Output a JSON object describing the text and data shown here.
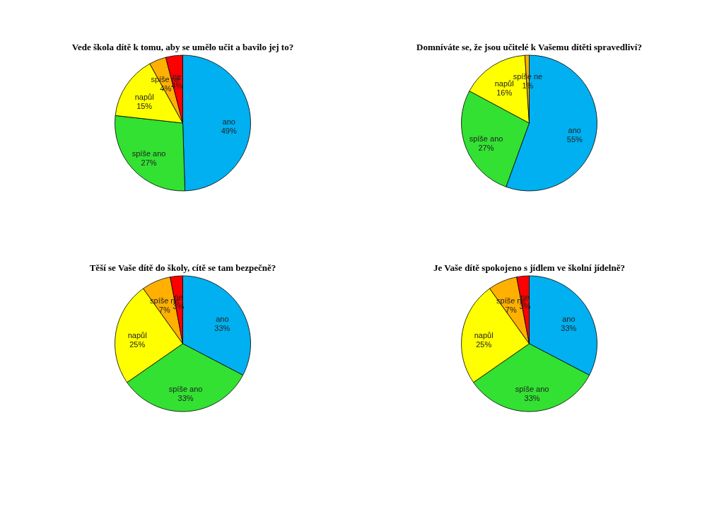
{
  "chart_data": [
    {
      "type": "pie",
      "title": "Vede škola dítě k tomu, aby se umělo učit a bavilo jej to?",
      "categories": [
        "ano",
        "spíše ano",
        "napůl",
        "spíše ne",
        "ne"
      ],
      "values": [
        49,
        27,
        15,
        4,
        4
      ],
      "value_labels": [
        "49%",
        "27%",
        "15%",
        "4%",
        "4%"
      ],
      "colors": [
        "#00b0f0",
        "#33e133",
        "#ffff00",
        "#ffb000",
        "#ff0000"
      ],
      "legend": false
    },
    {
      "type": "pie",
      "title": "Domníváte se, že jsou učitelé k Vašemu dítěti spravedliví?",
      "categories": [
        "ano",
        "spíše ano",
        "napůl",
        "spíše ne"
      ],
      "values": [
        55,
        27,
        16,
        1
      ],
      "value_labels": [
        "55%",
        "27%",
        "16%",
        "1%"
      ],
      "colors": [
        "#00b0f0",
        "#33e133",
        "#ffff00",
        "#ffb000"
      ],
      "legend": false
    },
    {
      "type": "pie",
      "title": "Těší se Vaše dítě do školy, cítě se tam bezpečně?",
      "categories": [
        "ano",
        "spíše ano",
        "napůl",
        "spíše ne",
        "ne"
      ],
      "values": [
        33,
        33,
        25,
        7,
        3
      ],
      "value_labels": [
        "33%",
        "33%",
        "25%",
        "7%",
        "3%"
      ],
      "colors": [
        "#00b0f0",
        "#33e133",
        "#ffff00",
        "#ffb000",
        "#ff0000"
      ],
      "legend": false
    },
    {
      "type": "pie",
      "title": "Je Vaše dítě spokojeno s jídlem ve školní jídelně?",
      "categories": [
        "ano",
        "spíše ano",
        "napůl",
        "spíše ne",
        "ne"
      ],
      "values": [
        33,
        33,
        25,
        7,
        3
      ],
      "value_labels": [
        "33%",
        "33%",
        "25%",
        "7%",
        "3%"
      ],
      "colors": [
        "#00b0f0",
        "#33e133",
        "#ffff00",
        "#ffb000",
        "#ff0000"
      ],
      "legend": false
    }
  ]
}
